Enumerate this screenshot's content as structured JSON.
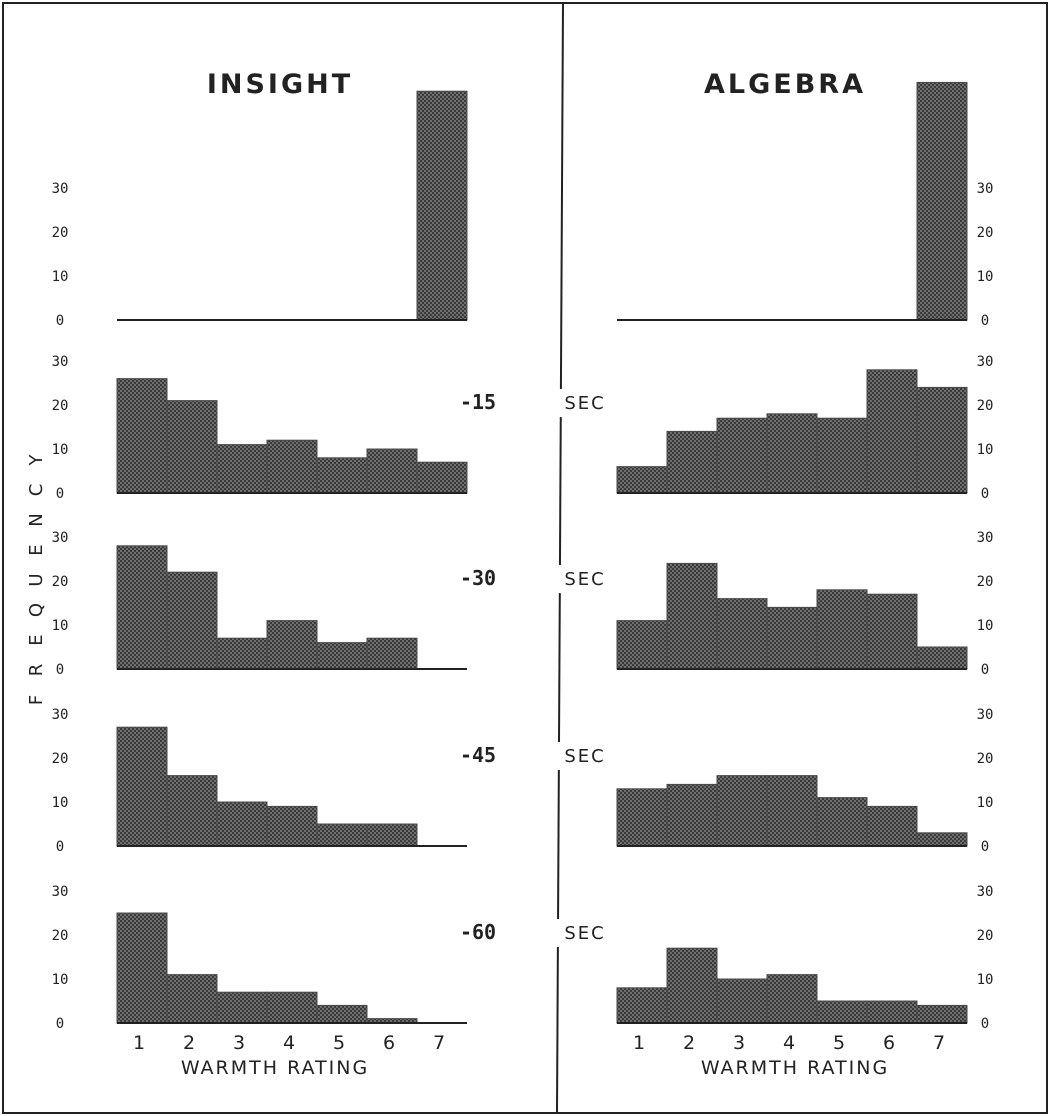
{
  "chart_data": {
    "type": "bar",
    "y_axis_label": "FREQUENCY",
    "x_axis_label": "WARMTH RATING",
    "categories": [
      "1",
      "2",
      "3",
      "4",
      "5",
      "6",
      "7"
    ],
    "y_ticks": [
      "0",
      "10",
      "20",
      "30"
    ],
    "ylim": [
      0,
      30
    ],
    "row_labels": [
      "",
      "-15",
      "-30",
      "-45",
      "-60"
    ],
    "row_unit": "SEC",
    "fill_color": "#4a4a4a",
    "panels": [
      {
        "title": "INSIGHT",
        "rows": [
          [
            0,
            0,
            0,
            0,
            0,
            0,
            52
          ],
          [
            26,
            21,
            11,
            12,
            8,
            10,
            7
          ],
          [
            28,
            22,
            7,
            11,
            6,
            7,
            0
          ],
          [
            27,
            16,
            10,
            9,
            5,
            5,
            0
          ],
          [
            25,
            11,
            7,
            7,
            4,
            1,
            0
          ]
        ]
      },
      {
        "title": "ALGEBRA",
        "rows": [
          [
            0,
            0,
            0,
            0,
            0,
            0,
            54
          ],
          [
            6,
            14,
            17,
            18,
            17,
            28,
            24
          ],
          [
            11,
            24,
            16,
            14,
            18,
            17,
            5
          ],
          [
            13,
            14,
            16,
            16,
            11,
            9,
            3
          ],
          [
            8,
            17,
            10,
            11,
            5,
            5,
            4
          ]
        ]
      }
    ]
  }
}
